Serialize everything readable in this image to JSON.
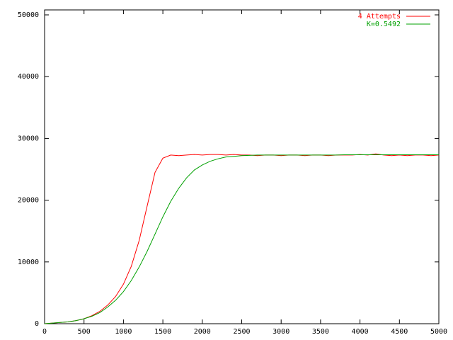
{
  "chart_data": {
    "type": "line",
    "x": [
      0,
      100,
      200,
      300,
      400,
      500,
      600,
      700,
      800,
      900,
      1000,
      1100,
      1200,
      1300,
      1400,
      1500,
      1600,
      1700,
      1800,
      1900,
      2000,
      2100,
      2200,
      2300,
      2400,
      2500,
      2600,
      2700,
      2800,
      2900,
      3000,
      3100,
      3200,
      3300,
      3400,
      3500,
      3600,
      3700,
      3800,
      3900,
      4000,
      4100,
      4200,
      4300,
      4400,
      4500,
      4600,
      4700,
      4800,
      4900,
      5000
    ],
    "series": [
      {
        "name": "4 Attempts",
        "color": "#ff0000",
        "values": [
          0,
          100,
          200,
          300,
          500,
          800,
          1300,
          2000,
          3000,
          4400,
          6400,
          9300,
          13500,
          19000,
          24500,
          26800,
          27300,
          27200,
          27300,
          27400,
          27300,
          27400,
          27400,
          27300,
          27400,
          27300,
          27300,
          27200,
          27300,
          27300,
          27200,
          27300,
          27300,
          27200,
          27300,
          27300,
          27200,
          27300,
          27300,
          27300,
          27400,
          27300,
          27500,
          27300,
          27200,
          27300,
          27200,
          27300,
          27300,
          27200,
          27300
        ]
      },
      {
        "name": "K=0.5492",
        "color": "#00a000",
        "values": [
          0,
          100,
          200,
          300,
          500,
          800,
          1200,
          1800,
          2700,
          3800,
          5200,
          7000,
          9200,
          11700,
          14500,
          17300,
          19800,
          21900,
          23600,
          24900,
          25700,
          26300,
          26700,
          27000,
          27100,
          27200,
          27250,
          27300,
          27300,
          27300,
          27300,
          27300,
          27300,
          27300,
          27300,
          27300,
          27300,
          27300,
          27350,
          27350,
          27350,
          27350,
          27350,
          27350,
          27350,
          27350,
          27350,
          27350,
          27350,
          27350,
          27350
        ]
      }
    ],
    "xlim": [
      0,
      5000
    ],
    "ylim": [
      0,
      50000
    ],
    "xticks": [
      0,
      500,
      1000,
      1500,
      2000,
      2500,
      3000,
      3500,
      4000,
      4500,
      5000
    ],
    "yticks": [
      0,
      10000,
      20000,
      30000,
      40000,
      50000
    ],
    "legend": "upper right",
    "grid": false
  }
}
